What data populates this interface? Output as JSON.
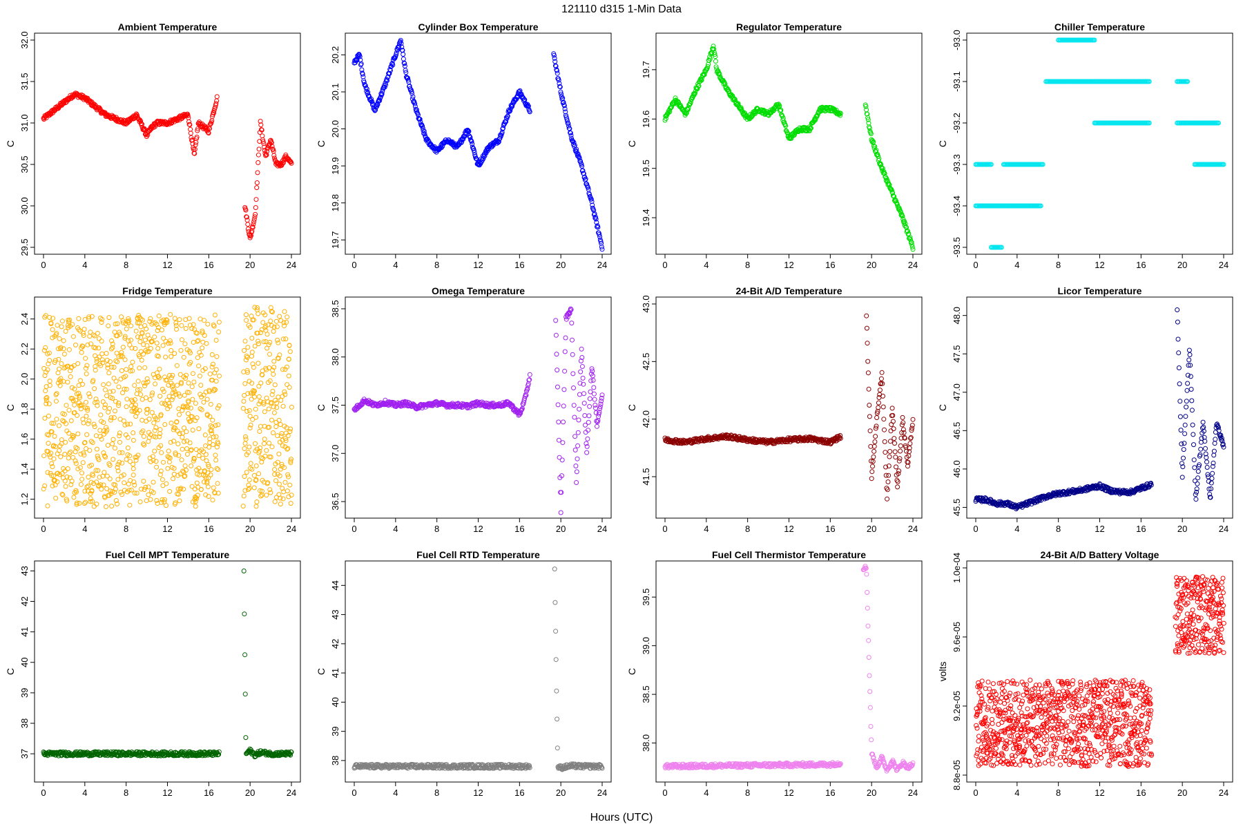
{
  "title": "121110   d315   1-Min Data",
  "xlabel": "Hours (UTC)",
  "chart_data": [
    {
      "type": "scatter",
      "title": "Ambient Temperature",
      "ylabel": "C",
      "color": "#ff0000",
      "xlim": [
        0,
        24
      ],
      "ylim": [
        29.5,
        32.0
      ],
      "xticks": [
        0,
        4,
        8,
        12,
        16,
        20,
        24
      ],
      "yticks": [
        29.5,
        30.0,
        30.5,
        31.0,
        31.5,
        32.0
      ],
      "ytick_labels": [
        "29.5",
        "30.0",
        "30.5",
        "31.0",
        "31.5",
        "32.0"
      ],
      "segments": [
        {
          "x": [
            0,
            1,
            2,
            3,
            4,
            5,
            6,
            8,
            9,
            10,
            10.5,
            11,
            12,
            13,
            14,
            14.6,
            15,
            16,
            16.8
          ],
          "y": [
            31.05,
            31.15,
            31.25,
            31.35,
            31.3,
            31.2,
            31.1,
            31.0,
            31.1,
            30.85,
            30.95,
            31.0,
            31.0,
            31.05,
            31.1,
            30.6,
            31.0,
            30.9,
            31.3
          ]
        },
        {
          "x": [
            19.5,
            20,
            20.5,
            21,
            21.5,
            22,
            22.5,
            23,
            23.5,
            24
          ],
          "y": [
            30.0,
            29.6,
            29.9,
            31.0,
            30.6,
            30.8,
            30.5,
            30.5,
            30.6,
            30.5
          ]
        }
      ]
    },
    {
      "type": "scatter",
      "title": "Cylinder Box Temperature",
      "ylabel": "C",
      "color": "#0000ff",
      "xlim": [
        0,
        24
      ],
      "ylim": [
        19.68,
        20.24
      ],
      "xticks": [
        0,
        4,
        8,
        12,
        16,
        20,
        24
      ],
      "yticks": [
        19.7,
        19.8,
        19.9,
        20.0,
        20.1,
        20.2
      ],
      "ytick_labels": [
        "19.7",
        "19.8",
        "19.9",
        "20.0",
        "20.1",
        "20.2"
      ],
      "segments": [
        {
          "x": [
            0,
            0.5,
            1,
            2,
            3,
            4,
            4.5,
            5,
            6,
            7,
            8,
            9,
            10,
            11,
            12,
            13,
            14,
            15,
            16,
            17
          ],
          "y": [
            20.18,
            20.2,
            20.12,
            20.05,
            20.12,
            20.2,
            20.24,
            20.15,
            20.05,
            19.97,
            19.94,
            19.97,
            19.95,
            20.0,
            19.9,
            19.95,
            19.97,
            20.05,
            20.1,
            20.05
          ]
        },
        {
          "x": [
            19.3,
            20,
            21,
            22,
            23,
            24
          ],
          "y": [
            20.2,
            20.1,
            19.98,
            19.9,
            19.8,
            19.68
          ]
        }
      ]
    },
    {
      "type": "scatter",
      "title": "Regulator Temperature",
      "ylabel": "C",
      "color": "#00dd00",
      "xlim": [
        0,
        24
      ],
      "ylim": [
        19.34,
        19.76
      ],
      "xticks": [
        0,
        4,
        8,
        12,
        16,
        20,
        24
      ],
      "yticks": [
        19.4,
        19.5,
        19.6,
        19.7
      ],
      "ytick_labels": [
        "19.4",
        "19.5",
        "19.6",
        "19.7"
      ],
      "segments": [
        {
          "x": [
            0,
            1,
            2,
            3,
            4,
            4.7,
            5,
            6,
            7,
            8,
            9,
            10,
            11,
            12,
            13,
            14,
            15,
            16,
            17
          ],
          "y": [
            19.6,
            19.64,
            19.61,
            19.66,
            19.7,
            19.75,
            19.7,
            19.66,
            19.63,
            19.6,
            19.62,
            19.61,
            19.63,
            19.56,
            19.58,
            19.58,
            19.62,
            19.62,
            19.61
          ]
        },
        {
          "x": [
            19.4,
            20,
            21,
            22,
            23,
            24
          ],
          "y": [
            19.63,
            19.56,
            19.5,
            19.45,
            19.4,
            19.34
          ]
        }
      ]
    },
    {
      "type": "scatter",
      "title": "Chiller Temperature",
      "ylabel": "C",
      "color": "#00e5ee",
      "xlim": [
        0,
        24
      ],
      "ylim": [
        -93.5,
        -93.0
      ],
      "xticks": [
        0,
        4,
        8,
        12,
        16,
        20,
        24
      ],
      "yticks": [
        -93.5,
        -93.4,
        -93.3,
        -93.2,
        -93.1,
        -93.0
      ],
      "ytick_labels": [
        "-93.5",
        "-93.4",
        "-93.3",
        "-93.2",
        "-93.1",
        "-93.0"
      ],
      "levels": [
        {
          "y": -93.5,
          "from": 1.5,
          "to": 2.5
        },
        {
          "y": -93.4,
          "from": 0,
          "to": 6.3
        },
        {
          "y": -93.3,
          "from": 0,
          "to": 1.5
        },
        {
          "y": -93.3,
          "from": 2.7,
          "to": 6.5
        },
        {
          "y": -93.1,
          "from": 6.8,
          "to": 11.5
        },
        {
          "y": -93.0,
          "from": 8,
          "to": 11.5
        },
        {
          "y": -93.1,
          "from": 11.5,
          "to": 16.8
        },
        {
          "y": -93.2,
          "from": 11.5,
          "to": 16.8
        },
        {
          "y": -93.1,
          "from": 19.5,
          "to": 20.5
        },
        {
          "y": -93.2,
          "from": 19.5,
          "to": 23.5
        },
        {
          "y": -93.3,
          "from": 21.2,
          "to": 24
        }
      ]
    },
    {
      "type": "scatter",
      "title": "Fridge Temperature",
      "ylabel": "C",
      "color": "#ffb000",
      "xlim": [
        0,
        24
      ],
      "ylim": [
        1.12,
        2.5
      ],
      "xticks": [
        0,
        4,
        8,
        12,
        16,
        20,
        24
      ],
      "yticks": [
        1.2,
        1.4,
        1.6,
        1.8,
        2.0,
        2.2,
        2.4
      ],
      "ytick_labels": [
        "1.2",
        "1.4",
        "1.6",
        "1.8",
        "2.0",
        "2.2",
        "2.4"
      ],
      "random_band": [
        {
          "x0": 0,
          "x1": 17,
          "y0": 1.15,
          "y1": 2.43
        },
        {
          "x0": 19.3,
          "x1": 24,
          "y0": 1.15,
          "y1": 2.48
        }
      ]
    },
    {
      "type": "scatter",
      "title": "Omega Temperature",
      "ylabel": "C",
      "color": "#a020f0",
      "xlim": [
        0,
        24
      ],
      "ylim": [
        36.4,
        38.55
      ],
      "xticks": [
        0,
        4,
        8,
        12,
        16,
        20,
        24
      ],
      "yticks": [
        36.5,
        37.0,
        37.5,
        38.0,
        38.5
      ],
      "ytick_labels": [
        "36.5",
        "37.0",
        "37.5",
        "38.0",
        "38.5"
      ],
      "segments": [
        {
          "x": [
            0,
            1,
            2,
            3,
            4,
            5,
            6,
            7,
            8,
            9,
            10,
            11,
            12,
            13,
            14,
            15,
            16,
            16.5,
            17
          ],
          "y": [
            37.45,
            37.55,
            37.5,
            37.53,
            37.5,
            37.52,
            37.48,
            37.5,
            37.52,
            37.5,
            37.5,
            37.49,
            37.52,
            37.5,
            37.5,
            37.52,
            37.4,
            37.55,
            37.8
          ]
        },
        {
          "x": [
            19.5,
            20,
            20.5,
            21,
            21.5,
            22,
            22.5,
            23,
            23.5,
            24
          ],
          "y": [
            38.4,
            36.4,
            38.4,
            38.5,
            36.7,
            38.1,
            37.0,
            37.9,
            37.3,
            37.6
          ]
        }
      ]
    },
    {
      "type": "scatter",
      "title": "24-Bit A/D Temperature",
      "ylabel": "C",
      "color": "#8b0000",
      "xlim": [
        0,
        24
      ],
      "ylim": [
        41.2,
        43.0
      ],
      "xticks": [
        0,
        4,
        8,
        12,
        16,
        20,
        24
      ],
      "yticks": [
        41.5,
        42.0,
        42.5,
        43.0
      ],
      "ytick_labels": [
        "41.5",
        "42.0",
        "42.5",
        "43.0"
      ],
      "segments": [
        {
          "x": [
            0,
            2,
            4,
            6,
            8,
            10,
            12,
            14,
            16,
            17
          ],
          "y": [
            41.82,
            41.8,
            41.83,
            41.85,
            41.82,
            41.8,
            41.82,
            41.83,
            41.8,
            41.85
          ]
        },
        {
          "x": [
            19.5,
            20,
            20.5,
            21,
            21.5,
            22,
            22.5,
            23,
            23.5,
            24
          ],
          "y": [
            42.9,
            41.5,
            42.0,
            42.4,
            41.3,
            42.1,
            41.4,
            42.0,
            41.6,
            42.0
          ]
        }
      ]
    },
    {
      "type": "scatter",
      "title": "Licor Temperature",
      "ylabel": "C",
      "color": "#000088",
      "xlim": [
        0,
        24
      ],
      "ylim": [
        45.45,
        48.15
      ],
      "xticks": [
        0,
        4,
        8,
        12,
        16,
        20,
        24
      ],
      "yticks": [
        45.5,
        46.0,
        46.5,
        47.0,
        47.5,
        48.0
      ],
      "ytick_labels": [
        "45.5",
        "46.0",
        "46.5",
        "47.0",
        "47.5",
        "48.0"
      ],
      "segments": [
        {
          "x": [
            0,
            1,
            2,
            3,
            4,
            5,
            6,
            7,
            8,
            9,
            10,
            11,
            12,
            13,
            14,
            15,
            16,
            17
          ],
          "y": [
            45.6,
            45.6,
            45.55,
            45.55,
            45.5,
            45.55,
            45.6,
            45.65,
            45.68,
            45.7,
            45.72,
            45.75,
            45.78,
            45.72,
            45.7,
            45.7,
            45.75,
            45.8
          ]
        },
        {
          "x": [
            19.5,
            20,
            20.7,
            21.3,
            22,
            22.7,
            23.3,
            24
          ],
          "y": [
            48.1,
            45.9,
            47.6,
            45.6,
            46.6,
            45.6,
            46.6,
            46.3
          ]
        }
      ]
    },
    {
      "type": "scatter",
      "title": "Fuel Cell MPT Temperature",
      "ylabel": "C",
      "color": "#006400",
      "xlim": [
        0,
        24
      ],
      "ylim": [
        36.3,
        43.1
      ],
      "xticks": [
        0,
        4,
        8,
        12,
        16,
        20,
        24
      ],
      "yticks": [
        37,
        38,
        39,
        40,
        41,
        42,
        43
      ],
      "ytick_labels": [
        "37",
        "38",
        "39",
        "40",
        "41",
        "42",
        "43"
      ],
      "segments": [
        {
          "x": [
            0,
            17
          ],
          "y": [
            37.0,
            37.0
          ]
        },
        {
          "x": [
            19.4,
            19.6,
            20,
            20.5,
            21,
            22,
            23,
            24
          ],
          "y": [
            43.0,
            37.0,
            37.1,
            36.95,
            37.05,
            37.0,
            37.0,
            37.0
          ]
        }
      ]
    },
    {
      "type": "scatter",
      "title": "Fuel Cell RTD Temperature",
      "ylabel": "C",
      "color": "#808080",
      "xlim": [
        0,
        24
      ],
      "ylim": [
        37.5,
        44.6
      ],
      "xticks": [
        0,
        4,
        8,
        12,
        16,
        20,
        24
      ],
      "yticks": [
        38,
        39,
        40,
        41,
        42,
        43,
        44
      ],
      "ytick_labels": [
        "38",
        "39",
        "40",
        "41",
        "42",
        "43",
        "44"
      ],
      "segments": [
        {
          "x": [
            0,
            17
          ],
          "y": [
            37.8,
            37.8
          ]
        },
        {
          "x": [
            19.4,
            19.7,
            20,
            21,
            22,
            23,
            24
          ],
          "y": [
            44.5,
            37.8,
            37.75,
            37.82,
            37.8,
            37.8,
            37.8
          ]
        }
      ]
    },
    {
      "type": "scatter",
      "title": "Fuel Cell Thermistor Temperature",
      "ylabel": "C",
      "color": "#ee82ee",
      "xlim": [
        0,
        24
      ],
      "ylim": [
        37.67,
        39.8
      ],
      "xticks": [
        0,
        4,
        8,
        12,
        16,
        20,
        24
      ],
      "yticks": [
        38.0,
        38.5,
        39.0,
        39.5
      ],
      "ytick_labels": [
        "38.0",
        "38.5",
        "39.0",
        "39.5"
      ],
      "segments": [
        {
          "x": [
            0,
            8,
            16,
            17
          ],
          "y": [
            37.76,
            37.77,
            37.78,
            37.79
          ]
        },
        {
          "x": [
            19.2,
            19.5,
            20,
            20.5,
            21,
            21.5,
            22,
            22.5,
            23,
            23.5,
            24
          ],
          "y": [
            39.8,
            39.8,
            37.9,
            37.75,
            37.85,
            37.72,
            37.82,
            37.72,
            37.8,
            37.75,
            37.78
          ]
        }
      ]
    },
    {
      "type": "scatter",
      "title": "24-Bit A/D Battery Voltage",
      "ylabel": "volts",
      "color": "#ff0000",
      "xlim": [
        0,
        24
      ],
      "ylim": [
        8.8e-05,
        0.0001
      ],
      "xticks": [
        0,
        4,
        8,
        12,
        16,
        20,
        24
      ],
      "yticks": [
        8.8e-05,
        9.2e-05,
        9.6e-05,
        0.0001
      ],
      "ytick_labels": [
        "8.8e-05",
        "9.2e-05",
        "9.6e-05",
        "1.0e-04"
      ],
      "random_band": [
        {
          "x0": 0,
          "x1": 17,
          "y0": 8.85e-05,
          "y1": 9.35e-05
        },
        {
          "x0": 19.3,
          "x1": 24,
          "y0": 9.5e-05,
          "y1": 9.95e-05
        }
      ]
    }
  ]
}
